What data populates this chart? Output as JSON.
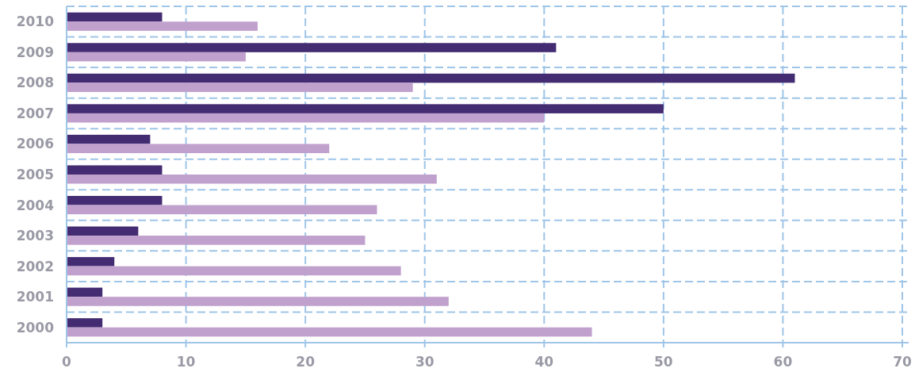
{
  "chart_data": {
    "type": "bar",
    "orientation": "horizontal",
    "categories": [
      "2010",
      "2009",
      "2008",
      "2007",
      "2006",
      "2005",
      "2004",
      "2003",
      "2002",
      "2001",
      "2000"
    ],
    "series": [
      {
        "color": "#432c72",
        "values": [
          8,
          41,
          61,
          50,
          7,
          8,
          8,
          6,
          4,
          3,
          3
        ]
      },
      {
        "color": "#c0a0cc",
        "values": [
          16,
          15,
          29,
          40,
          22,
          31,
          26,
          25,
          28,
          32,
          44
        ]
      }
    ],
    "xlim": [
      0,
      70
    ],
    "xticks": [
      0,
      10,
      20,
      30,
      40,
      50,
      60,
      70
    ],
    "grid": true
  }
}
